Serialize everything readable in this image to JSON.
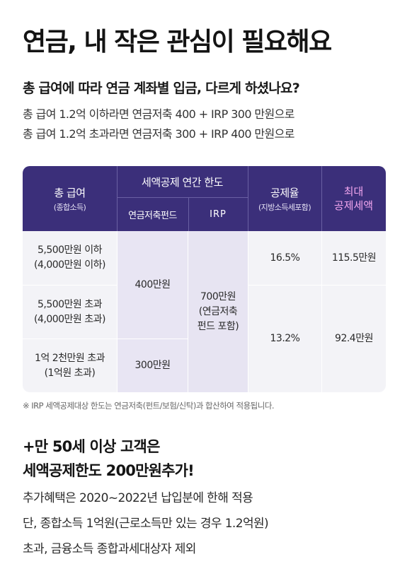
{
  "title": "연금, 내 작은 관심이 필요해요",
  "subtitle": "총 급여에 따라 연금 계좌별 입금, 다르게 하셨나요?",
  "desc_lines": [
    "총 급여 1.2억 이하라면 연금저축 400 + IRP 300 만원으로",
    "총 급여 1.2억 초과라면 연금저축 300 + IRP 400 만원으로"
  ],
  "table": {
    "col_total_pay": {
      "main": "총 급여",
      "sub": "(종합소득)"
    },
    "col_limit": "세액공제 연간 한도",
    "col_fund": "연금저축펀드",
    "col_irp": "IRP",
    "col_rate": {
      "main": "공제율",
      "sub": "(지방소득세포함)"
    },
    "col_max": {
      "line1": "최대",
      "line2": "공제세액"
    },
    "rows": [
      {
        "main": "5,500만원 이하",
        "sub": "(4,000만원 이하)"
      },
      {
        "main": "5,500만원 초과",
        "sub": "(4,000만원 초과)"
      },
      {
        "main": "1억 2천만원 초과",
        "sub": "(1억원 초과)"
      }
    ],
    "fund_400": "400만원",
    "fund_300": "300만원",
    "irp_value": {
      "line1": "700만원",
      "line2": "(연금저축",
      "line3": "펀드 포함)"
    },
    "rate_1": "16.5%",
    "rate_2": "13.2%",
    "max_1": "115.5만원",
    "max_2": "92.4만원"
  },
  "note": "※ IRP 세액공제대상 한도는 연금저축(펀트/보험/신탁)과 합산하여 적용됩니다.",
  "bonus_line1": "+만 50세 이상 고객은",
  "bonus_line2": "세액공제한도 200만원추가!",
  "extra_lines": [
    "추가혜택은 2020~2022년 납입분에 한해 적용",
    "단, 종합소득 1억원(근로소득만 있는 경우 1.2억원)",
    "초과, 금융소득 종합과세대상자 제외"
  ],
  "colors": {
    "header_bg": "#3b2f7a",
    "accent_pink": "#f2a6ee",
    "lavender": "#e8e5f3",
    "gray_cell": "#f3f3f7"
  }
}
